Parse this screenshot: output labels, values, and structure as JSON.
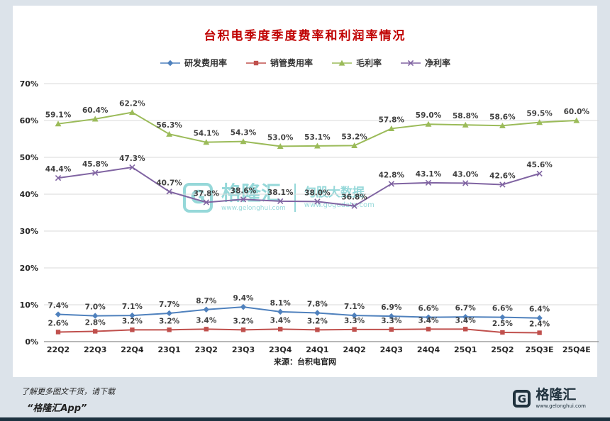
{
  "chart_data": {
    "type": "line",
    "title": "台积电季度季度费率和利润率情况",
    "source": "来源：台积电官网",
    "categories": [
      "22Q2",
      "22Q3",
      "22Q4",
      "23Q1",
      "23Q2",
      "23Q3",
      "23Q4",
      "24Q1",
      "24Q2",
      "24Q3",
      "24Q4",
      "25Q1",
      "25Q2",
      "25Q3E",
      "25Q4E"
    ],
    "ylim": [
      0,
      70
    ],
    "y_tick_step": 10,
    "y_tick_suffix": "%",
    "grid": true,
    "legend_position": "top",
    "series": [
      {
        "id": "rd-expense-ratio",
        "name": "研发费用率",
        "marker": "diamond",
        "color": "#4f81bd",
        "values": [
          7.4,
          7.0,
          7.1,
          7.7,
          8.7,
          9.4,
          8.1,
          7.8,
          7.1,
          6.9,
          6.6,
          6.7,
          6.6,
          6.4,
          null
        ]
      },
      {
        "id": "sga-expense-ratio",
        "name": "销管费用率",
        "marker": "square",
        "color": "#c0504d",
        "values": [
          2.6,
          2.8,
          3.2,
          3.2,
          3.4,
          3.2,
          3.4,
          3.2,
          3.3,
          3.3,
          3.4,
          3.4,
          2.5,
          2.4,
          null
        ]
      },
      {
        "id": "gross-margin",
        "name": "毛利率",
        "marker": "triangle",
        "color": "#9bbb59",
        "values": [
          59.1,
          60.4,
          62.2,
          56.3,
          54.1,
          54.3,
          53.0,
          53.1,
          53.2,
          57.8,
          59.0,
          58.8,
          58.6,
          59.5,
          60.0
        ]
      },
      {
        "id": "net-margin",
        "name": "净利率",
        "marker": "x",
        "color": "#8064a2",
        "values": [
          44.4,
          45.8,
          47.3,
          40.7,
          37.8,
          38.6,
          38.1,
          38.0,
          36.8,
          42.8,
          43.1,
          43.0,
          42.6,
          45.6,
          null
        ]
      }
    ]
  },
  "watermark": {
    "logo_letter": "G",
    "brand": "格隆汇",
    "brand_url": "www.gelonghui.com",
    "product": "勾股大数据",
    "product_url": "www.gogudata.com",
    "color": "#2fb3b5"
  },
  "footer": {
    "promo_line1": "了解更多图文干货，请下载",
    "promo_line2": "“格隆汇App”",
    "logo_letter": "G",
    "logo_text": "格隆汇",
    "logo_url": "www.gelonghui.com"
  }
}
